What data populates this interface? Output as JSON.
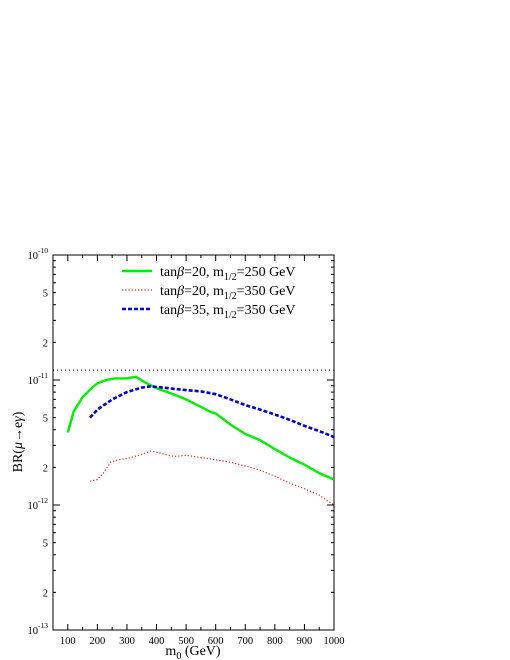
{
  "chart_data": {
    "type": "line",
    "xlabel_main": "m",
    "xlabel_sub": "0",
    "xlabel_unit": " (GeV)",
    "ylabel_prefix": "BR(",
    "ylabel_mu": "μ",
    "ylabel_arrow": "→",
    "ylabel_e": "e",
    "ylabel_gamma": "γ",
    "ylabel_suffix": ")",
    "x_ticks": [
      100,
      200,
      300,
      400,
      500,
      600,
      700,
      800,
      900,
      1000
    ],
    "xlim": [
      50,
      1000
    ],
    "y_scale": "log",
    "ylim": [
      1e-13,
      1e-10
    ],
    "y_tick_labels": [
      {
        "value": 1e-10,
        "base": "10",
        "exp": "-10"
      },
      {
        "value": 5e-11,
        "base": "5",
        "exp": ""
      },
      {
        "value": 2e-11,
        "base": "2",
        "exp": ""
      },
      {
        "value": 1e-11,
        "base": "10",
        "exp": "-11"
      },
      {
        "value": 5e-12,
        "base": "5",
        "exp": ""
      },
      {
        "value": 2e-12,
        "base": "2",
        "exp": ""
      },
      {
        "value": 1e-12,
        "base": "10",
        "exp": "-12"
      },
      {
        "value": 5e-13,
        "base": "5",
        "exp": ""
      },
      {
        "value": 2e-13,
        "base": "2",
        "exp": ""
      },
      {
        "value": 1e-13,
        "base": "10",
        "exp": "-13"
      }
    ],
    "reference_line": {
      "y": 1.2e-11,
      "style": "dotted",
      "color": "#000000"
    },
    "legend_position": "top-right",
    "series": [
      {
        "name_prefix": "tan",
        "name_beta": "β",
        "name_value": "=20, m",
        "name_sub": "1/2",
        "name_suffix": "=250 GeV",
        "color": "#00ee00",
        "style": "solid",
        "points": [
          [
            100,
            3.8e-12
          ],
          [
            120,
            5.6e-12
          ],
          [
            150,
            7.3e-12
          ],
          [
            180,
            8.6e-12
          ],
          [
            200,
            9.4e-12
          ],
          [
            230,
            1e-11
          ],
          [
            260,
            1.03e-11
          ],
          [
            300,
            1.03e-11
          ],
          [
            330,
            1.06e-11
          ],
          [
            360,
            9.6e-12
          ],
          [
            400,
            8.6e-12
          ],
          [
            450,
            7.8e-12
          ],
          [
            500,
            7e-12
          ],
          [
            550,
            6.1e-12
          ],
          [
            580,
            5.6e-12
          ],
          [
            600,
            5.4e-12
          ],
          [
            650,
            4.4e-12
          ],
          [
            700,
            3.7e-12
          ],
          [
            750,
            3.3e-12
          ],
          [
            800,
            2.8e-12
          ],
          [
            850,
            2.4e-12
          ],
          [
            900,
            2.1e-12
          ],
          [
            950,
            1.8e-12
          ],
          [
            1000,
            1.6e-12
          ]
        ]
      },
      {
        "name_prefix": "tan",
        "name_beta": "β",
        "name_value": "=20, m",
        "name_sub": "1/2",
        "name_suffix": "=350 GeV",
        "color": "#ee2222",
        "style": "dotted",
        "points": [
          [
            175,
            1.55e-12
          ],
          [
            200,
            1.6e-12
          ],
          [
            220,
            1.8e-12
          ],
          [
            245,
            2.2e-12
          ],
          [
            270,
            2.3e-12
          ],
          [
            300,
            2.35e-12
          ],
          [
            340,
            2.5e-12
          ],
          [
            380,
            2.7e-12
          ],
          [
            400,
            2.65e-12
          ],
          [
            440,
            2.5e-12
          ],
          [
            460,
            2.45e-12
          ],
          [
            500,
            2.5e-12
          ],
          [
            550,
            2.4e-12
          ],
          [
            600,
            2.3e-12
          ],
          [
            650,
            2.2e-12
          ],
          [
            700,
            2.05e-12
          ],
          [
            750,
            1.9e-12
          ],
          [
            800,
            1.7e-12
          ],
          [
            850,
            1.5e-12
          ],
          [
            900,
            1.35e-12
          ],
          [
            950,
            1.2e-12
          ],
          [
            1000,
            1e-12
          ]
        ]
      },
      {
        "name_prefix": "tan",
        "name_beta": "β",
        "name_value": "=35, m",
        "name_sub": "1/2",
        "name_suffix": "=350 GeV",
        "color": "#0000cc",
        "style": "dashed",
        "points": [
          [
            175,
            5e-12
          ],
          [
            200,
            5.8e-12
          ],
          [
            250,
            7e-12
          ],
          [
            300,
            8e-12
          ],
          [
            350,
            8.7e-12
          ],
          [
            380,
            8.9e-12
          ],
          [
            420,
            8.7e-12
          ],
          [
            500,
            8.3e-12
          ],
          [
            550,
            8.1e-12
          ],
          [
            600,
            7.7e-12
          ],
          [
            650,
            7e-12
          ],
          [
            700,
            6.3e-12
          ],
          [
            750,
            5.8e-12
          ],
          [
            800,
            5.3e-12
          ],
          [
            850,
            4.8e-12
          ],
          [
            900,
            4.3e-12
          ],
          [
            950,
            3.9e-12
          ],
          [
            1000,
            3.5e-12
          ]
        ]
      }
    ]
  }
}
